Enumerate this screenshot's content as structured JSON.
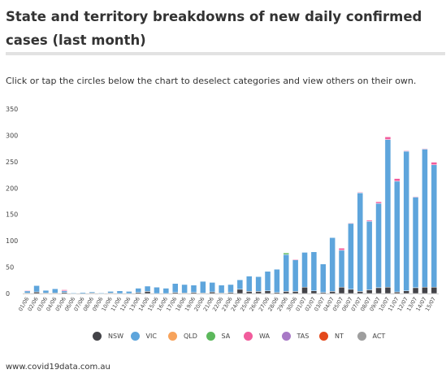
{
  "title": "State and territory breakdowns of new daily confirmed cases (last month)",
  "subtitle": "Click or tap the circles below the chart to deselect categories and view others on their own.",
  "source": "www.covid19data.com.au",
  "chart_data": {
    "type": "bar",
    "stacked": true,
    "title": "State and territory breakdowns of new daily confirmed cases (last month)",
    "ylim": [
      0,
      350
    ],
    "yticks": [
      0,
      50,
      100,
      150,
      200,
      250,
      300,
      350
    ],
    "categories": [
      "01/06",
      "02/06",
      "03/06",
      "04/06",
      "05/06",
      "06/06",
      "07/06",
      "08/06",
      "09/06",
      "10/06",
      "11/06",
      "12/06",
      "13/06",
      "14/06",
      "15/06",
      "16/06",
      "17/06",
      "18/06",
      "19/06",
      "20/06",
      "21/06",
      "22/06",
      "23/06",
      "24/06",
      "25/06",
      "26/06",
      "27/06",
      "28/06",
      "29/06",
      "30/06",
      "01/07",
      "02/07",
      "03/07",
      "04/07",
      "05/07",
      "06/07",
      "07/07",
      "08/07",
      "09/07",
      "10/07",
      "11/07",
      "12/07",
      "13/07",
      "14/07",
      "15/07"
    ],
    "series": [
      {
        "name": "NSW",
        "color": "#434348",
        "values": [
          1,
          3,
          1,
          1,
          2,
          0,
          0,
          1,
          0,
          1,
          0,
          0,
          2,
          4,
          0,
          0,
          2,
          1,
          2,
          1,
          3,
          1,
          2,
          8,
          4,
          4,
          5,
          2,
          4,
          4,
          12,
          5,
          2,
          4,
          12,
          8,
          4,
          7,
          11,
          12,
          3,
          5,
          11,
          12,
          12
        ]
      },
      {
        "name": "VIC",
        "color": "#5ea5dc",
        "values": [
          4,
          12,
          5,
          8,
          3,
          1,
          2,
          2,
          1,
          3,
          5,
          4,
          8,
          10,
          12,
          10,
          17,
          16,
          14,
          22,
          18,
          15,
          15,
          18,
          29,
          28,
          37,
          44,
          70,
          60,
          66,
          74,
          54,
          102,
          70,
          125,
          187,
          130,
          160,
          280,
          210,
          265,
          172,
          262,
          232
        ]
      },
      {
        "name": "QLD",
        "color": "#f7a35c",
        "values": [
          0,
          0,
          0,
          0,
          0,
          0,
          0,
          0,
          0,
          0,
          0,
          0,
          0,
          0,
          0,
          0,
          0,
          0,
          0,
          0,
          0,
          0,
          0,
          0,
          0,
          0,
          0,
          0,
          0,
          0,
          0,
          0,
          0,
          0,
          0,
          0,
          0,
          0,
          0,
          0,
          0,
          0,
          0,
          0,
          0
        ]
      },
      {
        "name": "SA",
        "color": "#5cb85c",
        "values": [
          0,
          0,
          0,
          0,
          0,
          0,
          0,
          0,
          0,
          0,
          0,
          0,
          0,
          0,
          0,
          0,
          0,
          0,
          0,
          0,
          0,
          0,
          0,
          0,
          0,
          0,
          0,
          0,
          3,
          0,
          0,
          0,
          0,
          0,
          0,
          0,
          0,
          0,
          0,
          0,
          0,
          0,
          0,
          0,
          0
        ]
      },
      {
        "name": "WA",
        "color": "#f15c9c",
        "values": [
          1,
          0,
          0,
          0,
          2,
          0,
          0,
          0,
          0,
          0,
          0,
          0,
          0,
          0,
          0,
          0,
          0,
          0,
          0,
          0,
          0,
          0,
          0,
          0,
          0,
          0,
          0,
          0,
          0,
          1,
          0,
          0,
          0,
          0,
          4,
          1,
          1,
          2,
          3,
          5,
          5,
          1,
          1,
          1,
          5
        ]
      },
      {
        "name": "TAS",
        "color": "#a879c6",
        "values": [
          0,
          0,
          0,
          0,
          0,
          0,
          0,
          0,
          0,
          0,
          0,
          0,
          0,
          0,
          0,
          0,
          0,
          0,
          0,
          0,
          0,
          0,
          0,
          0,
          0,
          0,
          0,
          0,
          0,
          0,
          0,
          0,
          0,
          0,
          0,
          0,
          0,
          0,
          0,
          0,
          0,
          0,
          0,
          0,
          0
        ]
      },
      {
        "name": "NT",
        "color": "#e4491b",
        "values": [
          0,
          0,
          0,
          0,
          0,
          0,
          0,
          0,
          0,
          0,
          0,
          0,
          0,
          0,
          0,
          0,
          0,
          0,
          0,
          0,
          0,
          0,
          0,
          0,
          0,
          0,
          0,
          0,
          0,
          0,
          0,
          0,
          0,
          0,
          0,
          0,
          0,
          0,
          0,
          0,
          0,
          0,
          0,
          0,
          0
        ]
      },
      {
        "name": "ACT",
        "color": "#9e9e9e",
        "values": [
          0,
          0,
          0,
          0,
          0,
          0,
          0,
          0,
          0,
          0,
          0,
          0,
          0,
          0,
          0,
          0,
          0,
          0,
          0,
          0,
          0,
          0,
          0,
          0,
          0,
          0,
          0,
          0,
          0,
          0,
          0,
          0,
          0,
          0,
          0,
          0,
          0,
          0,
          0,
          0,
          0,
          0,
          0,
          0,
          0
        ]
      }
    ],
    "grid": false,
    "legend_position": "bottom"
  }
}
